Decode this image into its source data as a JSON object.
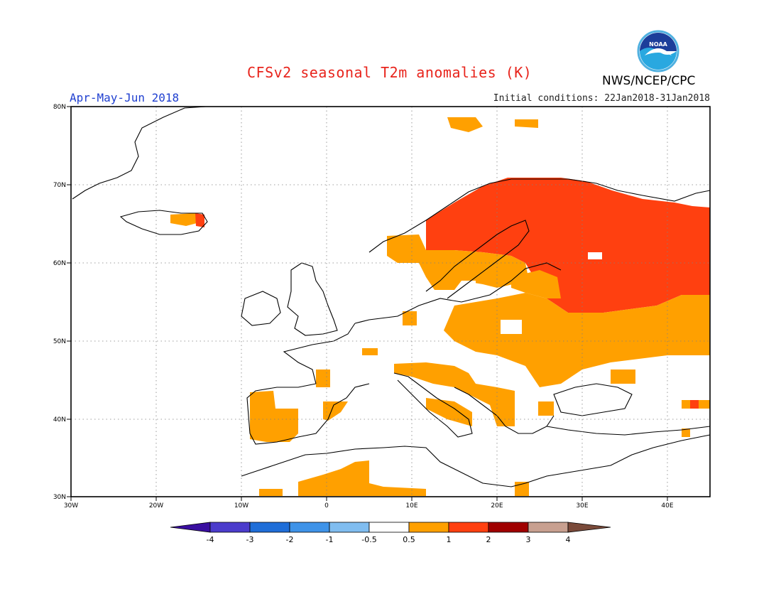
{
  "title": "CFSv2 seasonal T2m anomalies (K)",
  "period": "Apr-May-Jun 2018",
  "initial_conditions": "Initial conditions: 22Jan2018-31Jan2018",
  "agency": "NWS/NCEP/CPC",
  "logo_text": "NOAA",
  "axes": {
    "lat_labels": [
      "80N",
      "70N",
      "60N",
      "50N",
      "40N",
      "30N"
    ],
    "lon_labels": [
      "30W",
      "20W",
      "10W",
      "0",
      "10E",
      "20E",
      "30E",
      "40E"
    ]
  },
  "colorbar": {
    "labels": [
      "-4",
      "-3",
      "-2",
      "-1",
      "-0.5",
      "0.5",
      "1",
      "2",
      "3",
      "4"
    ],
    "colors": [
      "#3a0fa0",
      "#4b3ccc",
      "#1f6ed8",
      "#3f93e8",
      "#80bdf0",
      "#ffffff",
      "#ffa000",
      "#ff4010",
      "#a00000",
      "#c8a090",
      "#7a4a3a"
    ]
  },
  "colors": {
    "anomaly_05_1": "#ffa000",
    "anomaly_1_2": "#ff4010",
    "title": "#e8241c",
    "period": "#2040d0"
  }
}
